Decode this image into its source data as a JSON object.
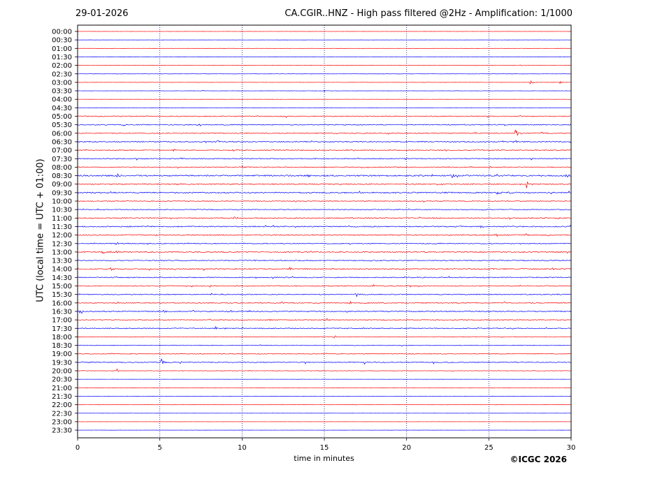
{
  "header": {
    "date": "29-01-2026",
    "title": "CA.CGIR..HNZ - High pass filtered @2Hz - Amplification: 1/1000"
  },
  "footer": {
    "copyright": "©ICGC 2026"
  },
  "chart_data": {
    "type": "line",
    "title": "CA.CGIR..HNZ - High pass filtered @2Hz - Amplification: 1/1000",
    "xlabel": "time in minutes",
    "ylabel": "UTC (local time = UTC + 01:00)",
    "xlim": [
      0,
      30
    ],
    "x_ticks": [
      "0",
      "5",
      "10",
      "15",
      "20",
      "25",
      "30"
    ],
    "vertical_grid_minutes": [
      5,
      10,
      15,
      20,
      25
    ],
    "colors": {
      "red": "#ff0000",
      "blue": "#0000ff"
    },
    "rows": [
      {
        "label": "00:00",
        "color": "red",
        "noise": 0.1,
        "events": []
      },
      {
        "label": "00:30",
        "color": "blue",
        "noise": 0.1,
        "events": []
      },
      {
        "label": "01:00",
        "color": "red",
        "noise": 0.1,
        "events": []
      },
      {
        "label": "01:30",
        "color": "blue",
        "noise": 0.1,
        "events": []
      },
      {
        "label": "02:00",
        "color": "red",
        "noise": 0.15,
        "events": [
          [
            26.8,
            1.5
          ]
        ]
      },
      {
        "label": "02:30",
        "color": "blue",
        "noise": 0.15,
        "events": []
      },
      {
        "label": "03:00",
        "color": "red",
        "noise": 0.15,
        "events": [
          [
            27.5,
            5
          ],
          [
            29.3,
            3
          ]
        ]
      },
      {
        "label": "03:30",
        "color": "blue",
        "noise": 0.15,
        "events": [
          [
            15.0,
            2
          ],
          [
            7.6,
            1.5
          ]
        ]
      },
      {
        "label": "04:00",
        "color": "red",
        "noise": 0.1,
        "events": []
      },
      {
        "label": "04:30",
        "color": "blue",
        "noise": 0.1,
        "events": []
      },
      {
        "label": "05:00",
        "color": "red",
        "noise": 0.6,
        "events": []
      },
      {
        "label": "05:30",
        "color": "blue",
        "noise": 0.6,
        "events": []
      },
      {
        "label": "06:00",
        "color": "red",
        "noise": 0.6,
        "events": [
          [
            26.6,
            9
          ]
        ]
      },
      {
        "label": "06:30",
        "color": "blue",
        "noise": 0.7,
        "events": [
          [
            26.5,
            6
          ],
          [
            7.8,
            2
          ],
          [
            8.5,
            2
          ]
        ]
      },
      {
        "label": "07:00",
        "color": "red",
        "noise": 0.6,
        "events": [
          [
            5.8,
            2
          ],
          [
            9.4,
            2
          ],
          [
            22.3,
            2
          ]
        ]
      },
      {
        "label": "07:30",
        "color": "blue",
        "noise": 0.6,
        "events": [
          [
            19.9,
            2
          ]
        ]
      },
      {
        "label": "08:00",
        "color": "red",
        "noise": 0.6,
        "events": [
          [
            10.0,
            2
          ],
          [
            22.5,
            2
          ],
          [
            25.0,
            2
          ]
        ]
      },
      {
        "label": "08:30",
        "color": "blue",
        "noise": 0.9,
        "events": [
          [
            2.4,
            3
          ],
          [
            14.0,
            3
          ],
          [
            22.7,
            7
          ],
          [
            25.5,
            3
          ],
          [
            27.9,
            3
          ],
          [
            29.7,
            3
          ]
        ]
      },
      {
        "label": "09:00",
        "color": "red",
        "noise": 0.7,
        "events": [
          [
            27.3,
            6
          ],
          [
            22.0,
            2
          ]
        ]
      },
      {
        "label": "09:30",
        "color": "blue",
        "noise": 0.8,
        "events": [
          [
            13.9,
            2
          ],
          [
            25.5,
            3
          ],
          [
            26.2,
            3
          ]
        ]
      },
      {
        "label": "10:00",
        "color": "red",
        "noise": 0.5,
        "events": [
          [
            13.2,
            2
          ]
        ]
      },
      {
        "label": "10:30",
        "color": "blue",
        "noise": 0.5,
        "events": []
      },
      {
        "label": "11:00",
        "color": "red",
        "noise": 0.7,
        "events": [
          [
            9.5,
            4
          ],
          [
            26.2,
            3
          ]
        ]
      },
      {
        "label": "11:30",
        "color": "blue",
        "noise": 0.7,
        "events": [
          [
            11.4,
            2
          ],
          [
            24.5,
            3
          ]
        ]
      },
      {
        "label": "12:00",
        "color": "red",
        "noise": 0.7,
        "events": [
          [
            25.4,
            3
          ]
        ]
      },
      {
        "label": "12:30",
        "color": "blue",
        "noise": 0.6,
        "events": [
          [
            2.3,
            3
          ],
          [
            26.8,
            2
          ]
        ]
      },
      {
        "label": "13:00",
        "color": "red",
        "noise": 0.7,
        "events": [
          [
            1.5,
            4
          ],
          [
            2.0,
            3
          ],
          [
            2.4,
            3
          ]
        ]
      },
      {
        "label": "13:30",
        "color": "blue",
        "noise": 0.6,
        "events": [
          [
            5.2,
            2
          ],
          [
            10.7,
            2
          ],
          [
            28.3,
            3
          ]
        ]
      },
      {
        "label": "14:00",
        "color": "red",
        "noise": 0.7,
        "events": [
          [
            2.0,
            3
          ],
          [
            12.9,
            3
          ],
          [
            28.8,
            2
          ]
        ]
      },
      {
        "label": "14:30",
        "color": "blue",
        "noise": 0.6,
        "events": [
          [
            2.4,
            2
          ]
        ]
      },
      {
        "label": "15:00",
        "color": "red",
        "noise": 0.6,
        "events": [
          [
            8.0,
            2
          ]
        ]
      },
      {
        "label": "15:30",
        "color": "blue",
        "noise": 0.6,
        "events": [
          [
            16.9,
            5
          ],
          [
            10.3,
            2
          ]
        ]
      },
      {
        "label": "16:00",
        "color": "red",
        "noise": 0.6,
        "events": [
          [
            16.5,
            6
          ],
          [
            12.4,
            3
          ],
          [
            17.4,
            2
          ]
        ]
      },
      {
        "label": "16:30",
        "color": "blue",
        "noise": 0.7,
        "events": [
          [
            0.1,
            3
          ],
          [
            5.2,
            3
          ],
          [
            7.0,
            3
          ],
          [
            9.3,
            2
          ]
        ]
      },
      {
        "label": "17:00",
        "color": "red",
        "noise": 0.5,
        "events": [
          [
            15.1,
            3
          ],
          [
            11.7,
            2
          ],
          [
            29.5,
            2
          ]
        ]
      },
      {
        "label": "17:30",
        "color": "blue",
        "noise": 0.6,
        "events": [
          [
            8.4,
            3
          ],
          [
            10.0,
            3
          ],
          [
            24.3,
            2
          ]
        ]
      },
      {
        "label": "18:00",
        "color": "red",
        "noise": 0.4,
        "events": [
          [
            15.6,
            2
          ]
        ]
      },
      {
        "label": "18:30",
        "color": "blue",
        "noise": 0.4,
        "events": []
      },
      {
        "label": "19:00",
        "color": "red",
        "noise": 0.5,
        "events": [
          [
            2.0,
            2
          ]
        ]
      },
      {
        "label": "19:30",
        "color": "blue",
        "noise": 0.6,
        "events": [
          [
            5.1,
            6
          ],
          [
            0.7,
            3
          ],
          [
            6.2,
            3
          ],
          [
            13.8,
            3
          ],
          [
            17.4,
            3
          ]
        ]
      },
      {
        "label": "20:00",
        "color": "red",
        "noise": 0.3,
        "events": [
          [
            2.4,
            3
          ]
        ]
      },
      {
        "label": "20:30",
        "color": "blue",
        "noise": 0.1,
        "events": []
      },
      {
        "label": "21:00",
        "color": "red",
        "noise": 0.1,
        "events": []
      },
      {
        "label": "21:30",
        "color": "blue",
        "noise": 0.1,
        "events": []
      },
      {
        "label": "22:00",
        "color": "red",
        "noise": 0.15,
        "events": [
          [
            12.4,
            1.5
          ]
        ]
      },
      {
        "label": "22:30",
        "color": "blue",
        "noise": 0.1,
        "events": []
      },
      {
        "label": "23:00",
        "color": "red",
        "noise": 0.1,
        "events": []
      },
      {
        "label": "23:30",
        "color": "blue",
        "noise": 0.1,
        "events": []
      }
    ]
  }
}
